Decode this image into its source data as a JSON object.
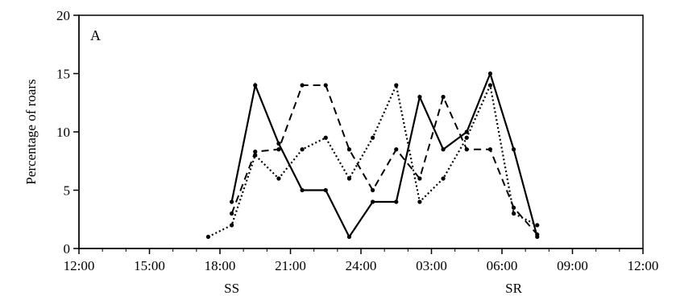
{
  "chart_data": {
    "type": "line",
    "panel_label": "A",
    "ylabel": "Percentage of roars",
    "xlabel": "",
    "ylim": [
      0,
      20
    ],
    "yticks": [
      0,
      5,
      10,
      15,
      20
    ],
    "xlim": [
      0,
      24
    ],
    "x_tick_positions": [
      0,
      3,
      6,
      9,
      12,
      15,
      18,
      21,
      24
    ],
    "x_tick_labels": [
      "12:00",
      "15:00",
      "18:00",
      "21:00",
      "24:00",
      "03:00",
      "06:00",
      "09:00",
      "12:00"
    ],
    "markers": [
      {
        "label": "SS",
        "x": 6.5
      },
      {
        "label": "SR",
        "x": 18.5
      }
    ],
    "grid": false,
    "series": [
      {
        "style": "solid",
        "x": [
          6.5,
          7.5,
          8.5,
          9.5,
          10.5,
          11.5,
          12.5,
          13.5,
          14.5,
          15.5,
          16.5,
          17.5,
          18.5,
          19.5
        ],
        "y": [
          4,
          14,
          9,
          5,
          5,
          1,
          4,
          4,
          13,
          8.5,
          10,
          15,
          8.5,
          1
        ]
      },
      {
        "style": "dashed",
        "x": [
          6.5,
          7.5,
          8.5,
          9.5,
          10.5,
          11.5,
          12.5,
          13.5,
          14.5,
          15.5,
          16.5,
          17.5,
          18.5,
          19.5
        ],
        "y": [
          3,
          8.3,
          8.5,
          14,
          14,
          8.5,
          5,
          8.5,
          6,
          13,
          8.5,
          8.5,
          3.5,
          1.2
        ]
      },
      {
        "style": "dotted",
        "x": [
          5.5,
          6.5,
          7.5,
          8.5,
          9.5,
          10.5,
          11.5,
          12.5,
          13.5,
          14.5,
          15.5,
          16.5,
          17.5,
          18.5,
          19.5
        ],
        "y": [
          1,
          2,
          8,
          6,
          8.5,
          9.5,
          6,
          9.5,
          14,
          4,
          6,
          9.5,
          14,
          3,
          2
        ]
      }
    ]
  }
}
